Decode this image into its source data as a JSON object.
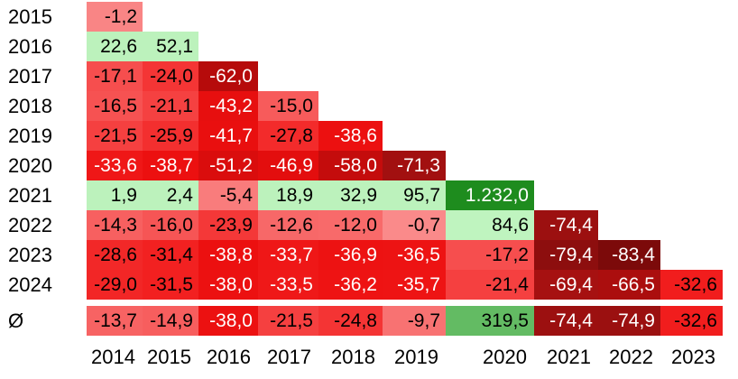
{
  "triangle": {
    "description_label": "returns-triangle-heatmap",
    "x_axis": [
      "2014",
      "2015",
      "2016",
      "2017",
      "2018",
      "2019",
      "2020",
      "2021",
      "2022",
      "2023"
    ],
    "rows": [
      {
        "label": "2015",
        "cells": [
          {
            "text": "-1,2",
            "bg": "#F98585",
            "fg": "#000000"
          }
        ]
      },
      {
        "label": "2016",
        "cells": [
          {
            "text": "22,6",
            "bg": "#BCF2BC",
            "fg": "#000000"
          },
          {
            "text": "52,1",
            "bg": "#BCF2BC",
            "fg": "#000000"
          }
        ]
      },
      {
        "label": "2017",
        "cells": [
          {
            "text": "-17,1",
            "bg": "#F64E4E",
            "fg": "#000000"
          },
          {
            "text": "-24,0",
            "bg": "#F43535",
            "fg": "#000000"
          },
          {
            "text": "-62,0",
            "bg": "#B60B0B",
            "fg": "#FFFFFF"
          }
        ]
      },
      {
        "label": "2018",
        "cells": [
          {
            "text": "-16,5",
            "bg": "#F65252",
            "fg": "#000000"
          },
          {
            "text": "-21,1",
            "bg": "#F54141",
            "fg": "#000000"
          },
          {
            "text": "-43,2",
            "bg": "#E70F0F",
            "fg": "#FFFFFF"
          },
          {
            "text": "-15,0",
            "bg": "#F75B5B",
            "fg": "#000000"
          }
        ]
      },
      {
        "label": "2019",
        "cells": [
          {
            "text": "-21,5",
            "bg": "#F54040",
            "fg": "#000000"
          },
          {
            "text": "-25,9",
            "bg": "#F32F2F",
            "fg": "#000000"
          },
          {
            "text": "-41,7",
            "bg": "#E90F0F",
            "fg": "#FFFFFF"
          },
          {
            "text": "-27,8",
            "bg": "#F32B2B",
            "fg": "#000000"
          },
          {
            "text": "-38,6",
            "bg": "#EC1010",
            "fg": "#FFFFFF"
          }
        ]
      },
      {
        "label": "2020",
        "cells": [
          {
            "text": "-33,6",
            "bg": "#EF1717",
            "fg": "#FFFFFF"
          },
          {
            "text": "-38,7",
            "bg": "#EC1010",
            "fg": "#FFFFFF"
          },
          {
            "text": "-51,2",
            "bg": "#DA0D0D",
            "fg": "#FFFFFF"
          },
          {
            "text": "-46,9",
            "bg": "#E30E0E",
            "fg": "#FFFFFF"
          },
          {
            "text": "-58,0",
            "bg": "#C40C0C",
            "fg": "#FFFFFF"
          },
          {
            "text": "-71,3",
            "bg": "#A21010",
            "fg": "#FFFFFF"
          }
        ]
      },
      {
        "label": "2021",
        "cells": [
          {
            "text": "1,9",
            "bg": "#BCF2BC",
            "fg": "#000000"
          },
          {
            "text": "2,4",
            "bg": "#BCF2BC",
            "fg": "#000000"
          },
          {
            "text": "-5,4",
            "bg": "#F97C7C",
            "fg": "#000000"
          },
          {
            "text": "18,9",
            "bg": "#BCF2BC",
            "fg": "#000000"
          },
          {
            "text": "32,9",
            "bg": "#BCF2BC",
            "fg": "#000000"
          },
          {
            "text": "95,7",
            "bg": "#BCF2BC",
            "fg": "#000000"
          },
          {
            "text": "1.232,0",
            "bg": "#1E8C1E",
            "fg": "#FFFFFF"
          }
        ]
      },
      {
        "label": "2022",
        "cells": [
          {
            "text": "-14,3",
            "bg": "#F76060",
            "fg": "#000000"
          },
          {
            "text": "-16,0",
            "bg": "#F65555",
            "fg": "#000000"
          },
          {
            "text": "-23,9",
            "bg": "#F43838",
            "fg": "#000000"
          },
          {
            "text": "-12,6",
            "bg": "#F76868",
            "fg": "#000000"
          },
          {
            "text": "-12,0",
            "bg": "#F86A6A",
            "fg": "#000000"
          },
          {
            "text": "-0,7",
            "bg": "#FA8A8A",
            "fg": "#000000"
          },
          {
            "text": "84,6",
            "bg": "#BFF4BF",
            "fg": "#000000"
          },
          {
            "text": "-74,4",
            "bg": "#9C1010",
            "fg": "#FFFFFF"
          }
        ]
      },
      {
        "label": "2023",
        "cells": [
          {
            "text": "-28,6",
            "bg": "#F22828",
            "fg": "#000000"
          },
          {
            "text": "-31,4",
            "bg": "#F22121",
            "fg": "#000000"
          },
          {
            "text": "-38,8",
            "bg": "#EC1010",
            "fg": "#FFFFFF"
          },
          {
            "text": "-33,7",
            "bg": "#EF1717",
            "fg": "#FFFFFF"
          },
          {
            "text": "-36,9",
            "bg": "#ED1212",
            "fg": "#FFFFFF"
          },
          {
            "text": "-36,5",
            "bg": "#ED1313",
            "fg": "#FFFFFF"
          },
          {
            "text": "-17,2",
            "bg": "#F64E4E",
            "fg": "#000000"
          },
          {
            "text": "-79,4",
            "bg": "#8D0E0E",
            "fg": "#FFFFFF"
          },
          {
            "text": "-83,4",
            "bg": "#7C0A0A",
            "fg": "#FFFFFF"
          }
        ]
      },
      {
        "label": "2024",
        "cells": [
          {
            "text": "-29,0",
            "bg": "#F22626",
            "fg": "#000000"
          },
          {
            "text": "-31,5",
            "bg": "#F22020",
            "fg": "#000000"
          },
          {
            "text": "-38,0",
            "bg": "#EC1111",
            "fg": "#FFFFFF"
          },
          {
            "text": "-33,5",
            "bg": "#EF1818",
            "fg": "#FFFFFF"
          },
          {
            "text": "-36,2",
            "bg": "#EE1313",
            "fg": "#FFFFFF"
          },
          {
            "text": "-35,7",
            "bg": "#EE1414",
            "fg": "#FFFFFF"
          },
          {
            "text": "-21,4",
            "bg": "#F54040",
            "fg": "#000000"
          },
          {
            "text": "-69,4",
            "bg": "#A61111",
            "fg": "#FFFFFF"
          },
          {
            "text": "-66,5",
            "bg": "#AB0E0E",
            "fg": "#FFFFFF"
          },
          {
            "text": "-32,6",
            "bg": "#F11D1D",
            "fg": "#000000"
          }
        ]
      },
      {
        "label": "Ø",
        "is_average": true,
        "cells": [
          {
            "text": "-13,7",
            "bg": "#F76363",
            "fg": "#000000"
          },
          {
            "text": "-14,9",
            "bg": "#F75E5E",
            "fg": "#000000"
          },
          {
            "text": "-38,0",
            "bg": "#EC1111",
            "fg": "#FFFFFF"
          },
          {
            "text": "-21,5",
            "bg": "#F54040",
            "fg": "#000000"
          },
          {
            "text": "-24,8",
            "bg": "#F43434",
            "fg": "#000000"
          },
          {
            "text": "-9,7",
            "bg": "#F87272",
            "fg": "#000000"
          },
          {
            "text": "319,5",
            "bg": "#63BB63",
            "fg": "#000000"
          },
          {
            "text": "-74,4",
            "bg": "#9C1010",
            "fg": "#FFFFFF"
          },
          {
            "text": "-74,9",
            "bg": "#9B1010",
            "fg": "#FFFFFF"
          },
          {
            "text": "-32,6",
            "bg": "#F11D1D",
            "fg": "#000000"
          }
        ]
      }
    ]
  },
  "chart_data": {
    "type": "heatmap",
    "title": "",
    "xlabel": "",
    "ylabel": "",
    "rows": [
      "2015",
      "2016",
      "2017",
      "2018",
      "2019",
      "2020",
      "2021",
      "2022",
      "2023",
      "2024",
      "Ø"
    ],
    "columns": [
      "2014",
      "2015",
      "2016",
      "2017",
      "2018",
      "2019",
      "2020",
      "2021",
      "2022",
      "2023"
    ],
    "values": [
      [
        -1.2,
        null,
        null,
        null,
        null,
        null,
        null,
        null,
        null,
        null
      ],
      [
        22.6,
        52.1,
        null,
        null,
        null,
        null,
        null,
        null,
        null,
        null
      ],
      [
        -17.1,
        -24.0,
        -62.0,
        null,
        null,
        null,
        null,
        null,
        null,
        null
      ],
      [
        -16.5,
        -21.1,
        -43.2,
        -15.0,
        null,
        null,
        null,
        null,
        null,
        null
      ],
      [
        -21.5,
        -25.9,
        -41.7,
        -27.8,
        -38.6,
        null,
        null,
        null,
        null,
        null
      ],
      [
        -33.6,
        -38.7,
        -51.2,
        -46.9,
        -58.0,
        -71.3,
        null,
        null,
        null,
        null
      ],
      [
        1.9,
        2.4,
        -5.4,
        18.9,
        32.9,
        95.7,
        1232.0,
        null,
        null,
        null
      ],
      [
        -14.3,
        -16.0,
        -23.9,
        -12.6,
        -12.0,
        -0.7,
        84.6,
        -74.4,
        null,
        null
      ],
      [
        -28.6,
        -31.4,
        -38.8,
        -33.7,
        -36.9,
        -36.5,
        -17.2,
        -79.4,
        -83.4,
        null
      ],
      [
        -29.0,
        -31.5,
        -38.0,
        -33.5,
        -36.2,
        -35.7,
        -21.4,
        -69.4,
        -66.5,
        -32.6
      ],
      [
        -13.7,
        -14.9,
        -38.0,
        -21.5,
        -24.8,
        -9.7,
        319.5,
        -74.4,
        -74.9,
        -32.6
      ]
    ],
    "number_format": "german-comma-decimal",
    "grid": false,
    "legend": "none",
    "color_scale": {
      "positive_low": "#BCF2BC",
      "positive_mid": "#63BB63",
      "positive_high": "#1E8C1E",
      "negative_low": "#FA8A8A",
      "negative_mid": "#EE1414",
      "negative_high": "#7C0A0A",
      "white_text_threshold": -33
    }
  }
}
